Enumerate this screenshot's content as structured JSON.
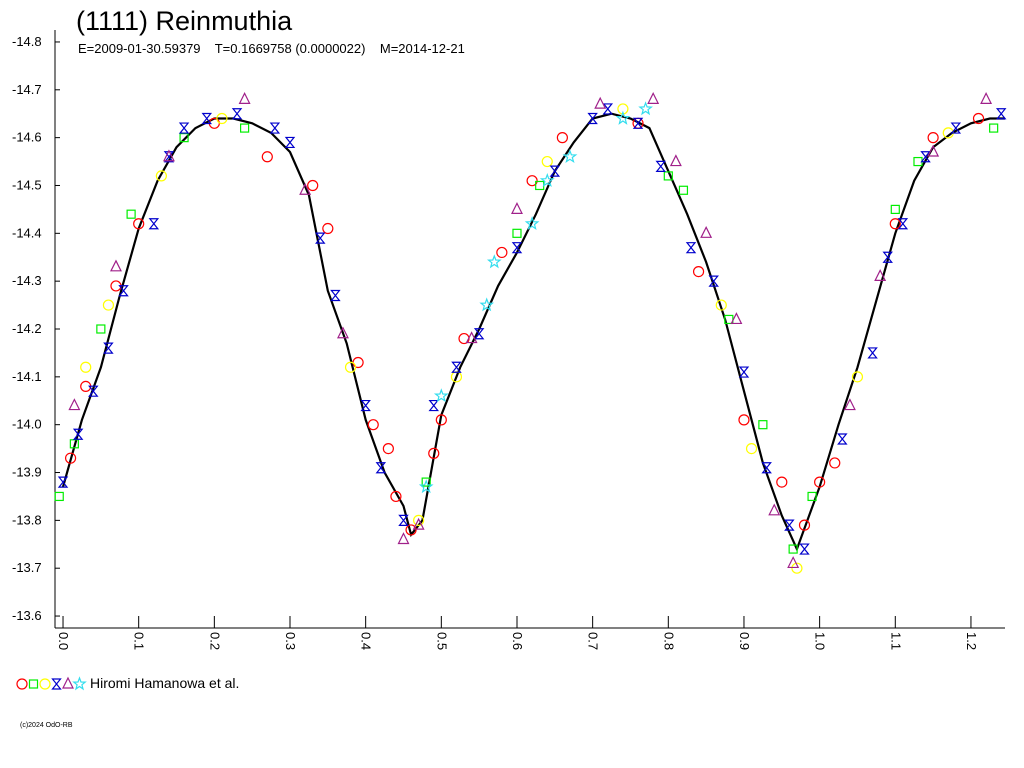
{
  "chart_data": {
    "type": "scatter",
    "title": "(1111) Reinmuthia",
    "subtitle": "E=2009-01-30.59379    T=0.1669758 (0.0000022)    M=2014-12-21",
    "legend_text": "Hiromi Hamanowa et al.",
    "copyright": "(c)2024 OdO-RB",
    "xlim": [
      -0.0106,
      1.245
    ],
    "ylim": [
      -13.575,
      -14.825
    ],
    "xticks": [
      {
        "value": 0,
        "label": "0.0"
      },
      0.1,
      0.2,
      0.3,
      0.4,
      0.5,
      0.6,
      0.7,
      0.8,
      0.9,
      {
        "value": 1,
        "label": "1.0"
      },
      1.1,
      1.2
    ],
    "yticks": [
      -14.8,
      -14.7,
      -14.6,
      -14.5,
      -14.4,
      -14.3,
      -14.2,
      -14.1,
      {
        "value": -14,
        "label": "-14.0"
      },
      -13.9,
      -13.8,
      -13.7,
      -13.6
    ],
    "fit": {
      "color": "#000000",
      "x": [
        0,
        0.025,
        0.05,
        0.075,
        0.1,
        0.125,
        0.15,
        0.175,
        0.2,
        0.225,
        0.25,
        0.275,
        0.3,
        0.325,
        0.35,
        0.375,
        0.4,
        0.425,
        0.45,
        0.46,
        0.475,
        0.5,
        0.525,
        0.55,
        0.575,
        0.6,
        0.625,
        0.65,
        0.675,
        0.7,
        0.725,
        0.75,
        0.775,
        0.8,
        0.825,
        0.85,
        0.875,
        0.9,
        0.925,
        0.95,
        0.97,
        1.0,
        1.025,
        1.05,
        1.075,
        1.1,
        1.125,
        1.15,
        1.175,
        1.2,
        1.225,
        1.245
      ],
      "values": [
        -13.87,
        -14.01,
        -14.12,
        -14.27,
        -14.41,
        -14.51,
        -14.58,
        -14.62,
        -14.64,
        -14.64,
        -14.63,
        -14.61,
        -14.57,
        -14.48,
        -14.28,
        -14.17,
        -14.01,
        -13.9,
        -13.83,
        -13.77,
        -13.8,
        -14.02,
        -14.12,
        -14.2,
        -14.29,
        -14.36,
        -14.44,
        -14.53,
        -14.59,
        -14.64,
        -14.65,
        -14.64,
        -14.62,
        -14.53,
        -14.44,
        -14.34,
        -14.22,
        -14.07,
        -13.92,
        -13.81,
        -13.74,
        -13.87,
        -14.0,
        -14.12,
        -14.26,
        -14.4,
        -14.51,
        -14.58,
        -14.61,
        -14.63,
        -14.64,
        -14.64
      ]
    },
    "series": [
      {
        "marker": "circle",
        "color": "#ff0000",
        "x": [
          0.01,
          0.03,
          0.07,
          0.1,
          0.2,
          0.27,
          0.33,
          0.35,
          0.39,
          0.41,
          0.43,
          0.44,
          0.46,
          0.49,
          0.5,
          0.53,
          0.58,
          0.62,
          0.66,
          0.76,
          0.84,
          0.9,
          0.95,
          0.98,
          1.0,
          1.02,
          1.1,
          1.15,
          1.21
        ],
        "values": [
          -13.93,
          -14.08,
          -14.29,
          -14.42,
          -14.63,
          -14.56,
          -14.5,
          -14.41,
          -14.13,
          -14.0,
          -13.95,
          -13.85,
          -13.78,
          -13.94,
          -14.01,
          -14.18,
          -14.36,
          -14.51,
          -14.6,
          -14.63,
          -14.32,
          -14.01,
          -13.88,
          -13.79,
          -13.88,
          -13.92,
          -14.42,
          -14.6,
          -14.64
        ]
      },
      {
        "marker": "square",
        "color": "#00ee00",
        "x": [
          -0.005,
          0.015,
          0.05,
          0.09,
          0.16,
          0.24,
          0.48,
          0.6,
          0.63,
          0.8,
          0.82,
          0.88,
          0.925,
          0.965,
          0.99,
          1.1,
          1.13,
          1.23
        ],
        "values": [
          -13.85,
          -13.96,
          -14.2,
          -14.44,
          -14.6,
          -14.62,
          -13.88,
          -14.4,
          -14.5,
          -14.52,
          -14.49,
          -14.22,
          -14.0,
          -13.74,
          -13.85,
          -14.45,
          -14.55,
          -14.62
        ]
      },
      {
        "marker": "circle",
        "color": "#ffff00",
        "x": [
          0.03,
          0.06,
          0.13,
          0.21,
          0.38,
          0.47,
          0.52,
          0.64,
          0.74,
          0.87,
          0.91,
          0.97,
          1.05,
          1.17
        ],
        "values": [
          -14.12,
          -14.25,
          -14.52,
          -14.64,
          -14.12,
          -13.8,
          -14.1,
          -14.55,
          -14.66,
          -14.25,
          -13.95,
          -13.7,
          -14.1,
          -14.61
        ]
      },
      {
        "marker": "bowtie",
        "color": "#0000cc",
        "x": [
          0,
          0.02,
          0.04,
          0.06,
          0.08,
          0.12,
          0.14,
          0.16,
          0.19,
          0.23,
          0.28,
          0.3,
          0.34,
          0.36,
          0.4,
          0.42,
          0.45,
          0.49,
          0.52,
          0.55,
          0.6,
          0.65,
          0.7,
          0.72,
          0.76,
          0.79,
          0.83,
          0.86,
          0.9,
          0.93,
          0.96,
          0.98,
          1.03,
          1.07,
          1.09,
          1.11,
          1.14,
          1.18,
          1.24
        ],
        "values": [
          -13.88,
          -13.98,
          -14.07,
          -14.16,
          -14.28,
          -14.42,
          -14.56,
          -14.62,
          -14.64,
          -14.65,
          -14.62,
          -14.59,
          -14.39,
          -14.27,
          -14.04,
          -13.91,
          -13.8,
          -14.04,
          -14.12,
          -14.19,
          -14.37,
          -14.53,
          -14.64,
          -14.66,
          -14.63,
          -14.54,
          -14.37,
          -14.3,
          -14.11,
          -13.91,
          -13.79,
          -13.74,
          -13.97,
          -14.15,
          -14.35,
          -14.42,
          -14.56,
          -14.62,
          -14.65
        ]
      },
      {
        "marker": "triangle",
        "color": "#a0208a",
        "x": [
          0.015,
          0.07,
          0.14,
          0.24,
          0.32,
          0.37,
          0.45,
          0.47,
          0.54,
          0.6,
          0.71,
          0.78,
          0.81,
          0.85,
          0.89,
          0.94,
          0.965,
          1.04,
          1.08,
          1.15,
          1.22
        ],
        "values": [
          -14.04,
          -14.33,
          -14.56,
          -14.68,
          -14.49,
          -14.19,
          -13.76,
          -13.79,
          -14.18,
          -14.45,
          -14.67,
          -14.68,
          -14.55,
          -14.4,
          -14.22,
          -13.82,
          -13.71,
          -14.04,
          -14.31,
          -14.57,
          -14.68
        ]
      },
      {
        "marker": "star",
        "color": "#33ddee",
        "x": [
          0.48,
          0.5,
          0.56,
          0.57,
          0.62,
          0.64,
          0.67,
          0.74,
          0.77
        ],
        "values": [
          -13.87,
          -14.06,
          -14.25,
          -14.34,
          -14.42,
          -14.51,
          -14.56,
          -14.64,
          -14.66
        ]
      }
    ]
  }
}
